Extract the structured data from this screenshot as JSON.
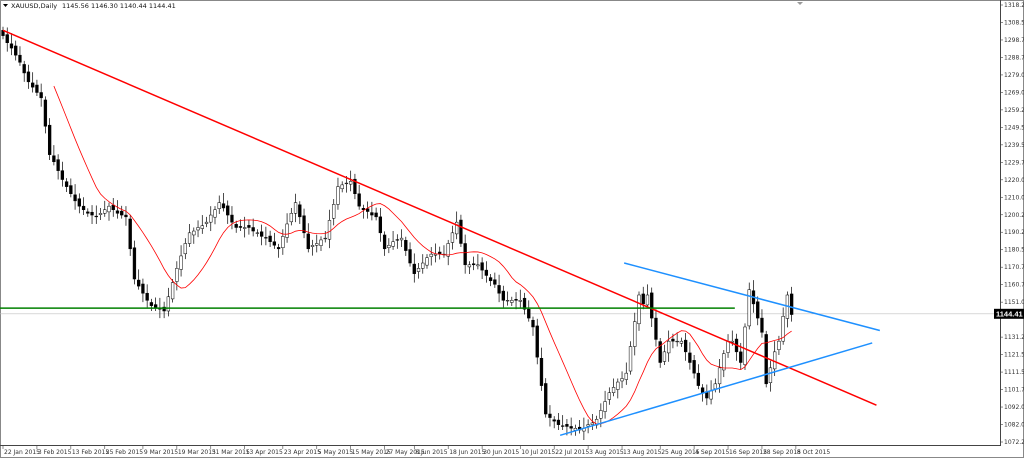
{
  "header": {
    "symbol": "XAUUSD,Daily",
    "ohlc": "1145.56 1146.30 1140.44 1144.41"
  },
  "chart_data": {
    "type": "candlestick",
    "timeframe": "Daily",
    "current_price": 1144.41,
    "current_price_label": "1144.41",
    "ylim": [
      1072.25,
      1318.25
    ],
    "y_ticks": [
      "1318.25",
      "1308.50",
      "1298.75",
      "1288.75",
      "1279.00",
      "1269.00",
      "1259.25",
      "1249.50",
      "1239.50",
      "1229.75",
      "1220.00",
      "1210.00",
      "1200.25",
      "1190.25",
      "1180.50",
      "1170.75",
      "1160.75",
      "1151.00",
      "1141.25",
      "1131.25",
      "1121.50",
      "1111.50",
      "1101.75",
      "1092.00",
      "1082.00",
      "1072.25"
    ],
    "x_ticks": [
      {
        "label": "22 Jan 2015",
        "bar": 0
      },
      {
        "label": "3 Feb 2015",
        "bar": 8
      },
      {
        "label": "13 Feb 2015",
        "bar": 16
      },
      {
        "label": "25 Feb 2015",
        "bar": 24
      },
      {
        "label": "9 Mar 2015",
        "bar": 33
      },
      {
        "label": "19 Mar 2015",
        "bar": 41
      },
      {
        "label": "31 Mar 2015",
        "bar": 49
      },
      {
        "label": "13 Apr 2015",
        "bar": 57
      },
      {
        "label": "23 Apr 2015",
        "bar": 66
      },
      {
        "label": "5 May 2015",
        "bar": 74
      },
      {
        "label": "15 May 2015",
        "bar": 82
      },
      {
        "label": "27 May 2015",
        "bar": 90
      },
      {
        "label": "8 Jun 2015",
        "bar": 97
      },
      {
        "label": "18 Jun 2015",
        "bar": 105
      },
      {
        "label": "30 Jun 2015",
        "bar": 113
      },
      {
        "label": "10 Jul 2015",
        "bar": 122
      },
      {
        "label": "22 Jul 2015",
        "bar": 130
      },
      {
        "label": "3 Aug 2015",
        "bar": 138
      },
      {
        "label": "13 Aug 2015",
        "bar": 146
      },
      {
        "label": "25 Aug 2015",
        "bar": 155
      },
      {
        "label": "4 Sep 2015",
        "bar": 163
      },
      {
        "label": "16 Sep 2015",
        "bar": 171
      },
      {
        "label": "28 Sep 2015",
        "bar": 179
      },
      {
        "label": "8 Oct 2015",
        "bar": 187
      }
    ],
    "closes": [
      1301,
      1297,
      1294,
      1290,
      1286,
      1280,
      1275,
      1272,
      1269,
      1266,
      1250,
      1234,
      1230,
      1225,
      1220,
      1216,
      1212,
      1208,
      1205,
      1203,
      1201,
      1200,
      1199,
      1201,
      1203,
      1205,
      1203,
      1201,
      1200,
      1199,
      1181,
      1164,
      1160,
      1156,
      1152,
      1149,
      1148,
      1147,
      1146,
      1154,
      1162,
      1170,
      1177,
      1184,
      1190,
      1191,
      1193,
      1194,
      1196,
      1200,
      1203,
      1207,
      1204,
      1200,
      1196,
      1193,
      1193,
      1193,
      1193,
      1191,
      1190,
      1188,
      1187,
      1185,
      1183,
      1181,
      1188,
      1195,
      1201,
      1207,
      1199,
      1190,
      1181,
      1183,
      1184,
      1186,
      1187,
      1197,
      1206,
      1216,
      1217,
      1218,
      1219,
      1212,
      1205,
      1203,
      1202,
      1200,
      1199,
      1190,
      1181,
      1183,
      1185,
      1186,
      1187,
      1180,
      1173,
      1167,
      1170,
      1173,
      1176,
      1178,
      1178,
      1178,
      1178,
      1184,
      1190,
      1196,
      1184,
      1172,
      1172,
      1172,
      1172,
      1169,
      1166,
      1163,
      1161,
      1156,
      1152,
      1152,
      1152,
      1152,
      1152,
      1147,
      1142,
      1137,
      1120,
      1104,
      1088,
      1086,
      1084,
      1082,
      1081,
      1081,
      1080,
      1080,
      1079,
      1080,
      1082,
      1083,
      1085,
      1090,
      1095,
      1100,
      1103,
      1106,
      1108,
      1111,
      1126,
      1140,
      1155,
      1150,
      1155,
      1142,
      1130,
      1117,
      1123,
      1129,
      1129,
      1129,
      1129,
      1123,
      1117,
      1111,
      1104,
      1100,
      1097,
      1101,
      1105,
      1114,
      1122,
      1129,
      1129,
      1123,
      1117,
      1137,
      1158,
      1150,
      1142,
      1134,
      1105,
      1114,
      1123,
      1129,
      1143,
      1155,
      1144
    ],
    "moving_average_period": 13,
    "trendlines": [
      {
        "name": "downtrend",
        "color": "#ff0000",
        "from": {
          "bar": 0,
          "price": 1304
        },
        "to": {
          "bar": 206,
          "price": 1093
        }
      },
      {
        "name": "triangle-upper",
        "color": "#1e90ff",
        "from": {
          "bar": 146.5,
          "price": 1173
        },
        "to": {
          "bar": 206.8,
          "price": 1135
        }
      },
      {
        "name": "triangle-lower",
        "color": "#1e90ff",
        "from": {
          "bar": 131.4,
          "price": 1076
        },
        "to": {
          "bar": 205,
          "price": 1128
        }
      },
      {
        "name": "support-horizontal",
        "color": "#008000",
        "from": {
          "bar": -1,
          "price": 1147.6
        },
        "to": {
          "bar": 172.6,
          "price": 1147.6
        }
      }
    ],
    "colors": {
      "bull_body": "#ffffff",
      "bear_body": "#000000",
      "moving_average": "#ff0000",
      "price_line": "#c0c0c0"
    },
    "grid": false
  }
}
